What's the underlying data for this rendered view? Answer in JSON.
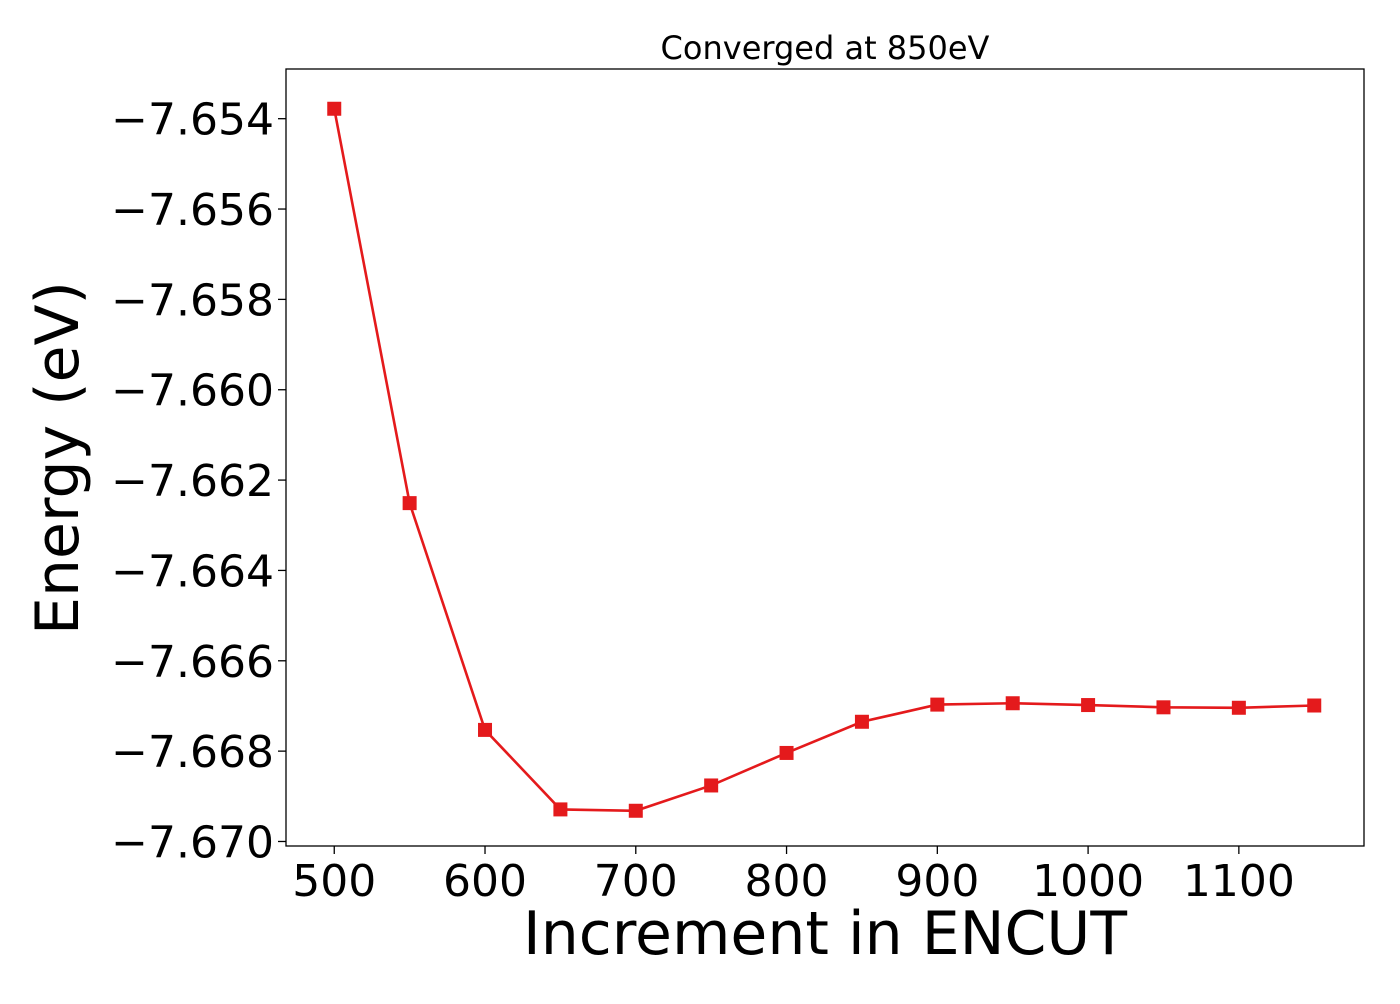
{
  "chart_data": {
    "type": "line",
    "title": "Converged at 850eV",
    "xlabel": "Increment in ENCUT",
    "ylabel": "Energy (eV)",
    "xlim": [
      468,
      1183
    ],
    "ylim": [
      -7.6701,
      -7.6529
    ],
    "x_ticks": [
      500,
      600,
      700,
      800,
      900,
      1000,
      1100
    ],
    "y_ticks": [
      -7.654,
      -7.656,
      -7.658,
      -7.66,
      -7.662,
      -7.664,
      -7.666,
      -7.668,
      -7.67
    ],
    "y_tick_labels": [
      "−7.654",
      "−7.656",
      "−7.658",
      "−7.660",
      "−7.662",
      "−7.664",
      "−7.666",
      "−7.668",
      "−7.670"
    ],
    "grid": false,
    "series": [
      {
        "color": "#e41a1c",
        "marker": "square",
        "x": [
          500,
          550,
          600,
          650,
          700,
          750,
          800,
          850,
          900,
          950,
          1000,
          1050,
          1100,
          1150
        ],
        "y": [
          -7.65378,
          -7.66251,
          -7.66753,
          -7.66929,
          -7.66932,
          -7.66876,
          -7.66804,
          -7.66735,
          -7.66697,
          -7.66694,
          -7.66698,
          -7.66703,
          -7.66704,
          -7.66699
        ]
      }
    ]
  }
}
